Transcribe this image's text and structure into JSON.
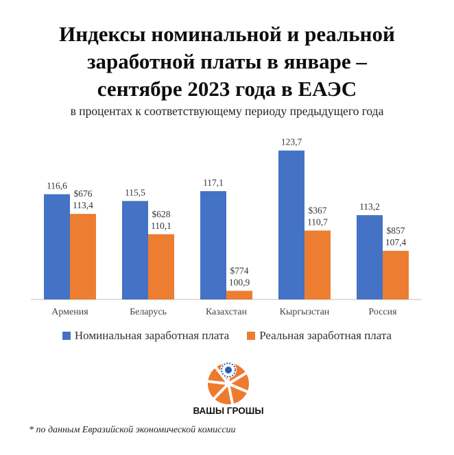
{
  "title_lines": [
    "Индексы номинальной и реальной",
    "заработной платы в январе –",
    "сентябре 2023 года в ЕАЭС"
  ],
  "subtitle": "в процентах к соответствующему периоду предыдущего года",
  "colors": {
    "nominal": "#4472c4",
    "real": "#ed7d31",
    "logo_blue": "#2a5db0",
    "logo_orange": "#ee7a2e"
  },
  "chart_data": {
    "type": "bar",
    "title": "Индексы номинальной и реальной заработной платы в январе – сентябре 2023 года в ЕАЭС",
    "subtitle": "в процентах к соответствующему периоду предыдущего года",
    "categories": [
      "Армения",
      "Беларусь",
      "Казахстан",
      "Кыргызстан",
      "Россия"
    ],
    "series": [
      {
        "name": "Номинальная заработная плата",
        "values": [
          116.6,
          115.5,
          117.1,
          123.7,
          113.2
        ]
      },
      {
        "name": "Реальная заработная плата",
        "values": [
          113.4,
          110.1,
          100.9,
          110.7,
          107.4
        ]
      }
    ],
    "value_labels": {
      "nominal": [
        "116,6",
        "115,5",
        "117,1",
        "123,7",
        "113,2"
      ],
      "real": [
        "113,4",
        "110,1",
        "100,9",
        "110,7",
        "107,4"
      ]
    },
    "annotations": [
      "$676",
      "$628",
      "$774",
      "$367",
      "$857"
    ],
    "ylim": [
      99.5,
      125
    ],
    "grid": false,
    "legend_position": "bottom"
  },
  "logo": {
    "text": "ВАШЫ ГРОШЫ"
  },
  "footnote": "* по данным Евразийской экономической комиссии"
}
